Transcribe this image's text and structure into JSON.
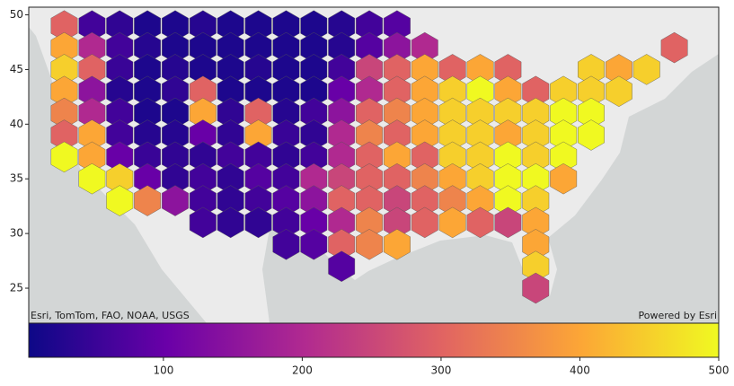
{
  "chart_data": {
    "type": "hexbin",
    "attribution": "Esri, TomTom, FAO, NOAA, USGS",
    "powered_by": "Powered by Esri",
    "xlim": [
      -127.2,
      -65
    ],
    "ylim": [
      21.8,
      50.7
    ],
    "yticks": [
      25,
      30,
      35,
      40,
      45,
      50
    ],
    "lon": [
      -124,
      -121.5,
      -119,
      -116.5,
      -114,
      -111.5,
      -109,
      -106.5,
      -104,
      -101.5,
      -99,
      -96.5,
      -94,
      -91.5,
      -89,
      -86.5,
      -84,
      -81.5,
      -79,
      -76.5,
      -74,
      -71.5,
      -69
    ],
    "lat": [
      49,
      47,
      45,
      43,
      41,
      39,
      37,
      35,
      33,
      31,
      29,
      27,
      25
    ],
    "values": [
      [
        300,
        60,
        40,
        20,
        20,
        30,
        20,
        20,
        20,
        20,
        30,
        60,
        80,
        null,
        null,
        null,
        null,
        null,
        null,
        null,
        null,
        null,
        null
      ],
      [
        400,
        200,
        60,
        30,
        20,
        20,
        20,
        20,
        20,
        20,
        30,
        80,
        150,
        200,
        null,
        null,
        null,
        null,
        null,
        null,
        null,
        null,
        300
      ],
      [
        450,
        300,
        50,
        20,
        30,
        20,
        20,
        30,
        20,
        20,
        60,
        250,
        300,
        400,
        300,
        400,
        300,
        null,
        null,
        450,
        400,
        450,
        null
      ],
      [
        400,
        150,
        30,
        20,
        40,
        300,
        20,
        20,
        20,
        20,
        100,
        200,
        300,
        400,
        450,
        500,
        400,
        300,
        450,
        450,
        450,
        null,
        null
      ],
      [
        350,
        200,
        60,
        20,
        20,
        400,
        40,
        300,
        30,
        60,
        150,
        300,
        350,
        400,
        450,
        450,
        450,
        450,
        500,
        500,
        null,
        null,
        null
      ],
      [
        300,
        400,
        60,
        30,
        30,
        100,
        40,
        400,
        50,
        40,
        200,
        350,
        300,
        400,
        450,
        450,
        400,
        450,
        500,
        500,
        null,
        null,
        null
      ],
      [
        500,
        400,
        100,
        50,
        40,
        40,
        60,
        60,
        40,
        60,
        200,
        300,
        400,
        300,
        450,
        450,
        500,
        450,
        500,
        null,
        null,
        null,
        null
      ],
      [
        null,
        500,
        450,
        100,
        40,
        60,
        40,
        80,
        60,
        200,
        250,
        300,
        300,
        350,
        400,
        450,
        500,
        500,
        400,
        null,
        null,
        null,
        null
      ],
      [
        null,
        null,
        500,
        350,
        150,
        60,
        40,
        60,
        80,
        150,
        300,
        300,
        250,
        300,
        350,
        400,
        500,
        450,
        null,
        null,
        null,
        null,
        null
      ],
      [
        null,
        null,
        null,
        null,
        null,
        60,
        40,
        40,
        60,
        100,
        200,
        350,
        250,
        300,
        400,
        300,
        250,
        400,
        null,
        null,
        null,
        null,
        null
      ],
      [
        null,
        null,
        null,
        null,
        null,
        null,
        null,
        null,
        60,
        80,
        300,
        350,
        400,
        null,
        null,
        null,
        null,
        400,
        null,
        null,
        null,
        null,
        null
      ],
      [
        null,
        null,
        null,
        null,
        null,
        null,
        null,
        null,
        null,
        null,
        80,
        null,
        null,
        null,
        null,
        null,
        null,
        450,
        null,
        null,
        null,
        null,
        null
      ],
      [
        null,
        null,
        null,
        null,
        null,
        null,
        null,
        null,
        null,
        null,
        null,
        null,
        null,
        null,
        null,
        null,
        null,
        250,
        null,
        null,
        null,
        null,
        null
      ]
    ],
    "clim": [
      3,
      500
    ],
    "cticks": [
      100,
      200,
      300,
      400,
      500
    ],
    "colormap": [
      "#0d0887",
      "#6a00a8",
      "#b12a90",
      "#e16462",
      "#fca636",
      "#f0f921"
    ]
  }
}
